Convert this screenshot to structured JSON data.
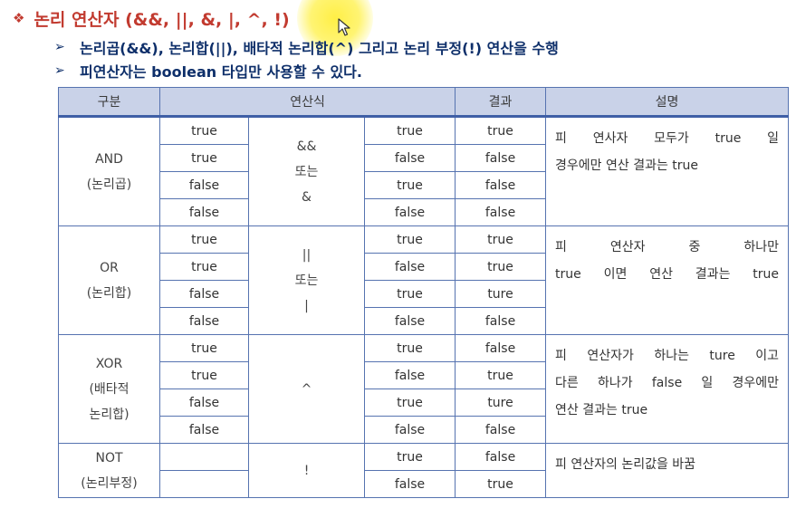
{
  "title": {
    "marker": "❖",
    "text": "논리 연산자 (&&, ||, &, |, ^, !)"
  },
  "bullets": [
    {
      "marker": "➢",
      "text": "논리곱(&&), 논리합(||), 배타적 논리합(^) 그리고 논리 부정(!) 연산을 수행"
    },
    {
      "marker": "➢",
      "text": "피연산자는 boolean 타입만 사용할 수 있다."
    }
  ],
  "table": {
    "headers": {
      "category": "구분",
      "expression": "연산식",
      "result": "결과",
      "description": "설명"
    },
    "groups": [
      {
        "category": [
          "AND",
          "(논리곱)"
        ],
        "operator": [
          "&&",
          "또는",
          "&"
        ],
        "description": [
          "피 연사자 모두가 true 일",
          "경우에만 연산 결과는 true"
        ],
        "rows": [
          {
            "left": "true",
            "right": "true",
            "result": "true"
          },
          {
            "left": "true",
            "right": "false",
            "result": "false"
          },
          {
            "left": "false",
            "right": "true",
            "result": "false"
          },
          {
            "left": "false",
            "right": "false",
            "result": "false"
          }
        ]
      },
      {
        "category": [
          "OR",
          "(논리합)"
        ],
        "operator": [
          "||",
          "또는",
          "|"
        ],
        "description": [
          "피 연산자 중 하나만",
          "true 이면 연산 결과는 true"
        ],
        "rows": [
          {
            "left": "true",
            "right": "true",
            "result": "true"
          },
          {
            "left": "true",
            "right": "false",
            "result": "true"
          },
          {
            "left": "false",
            "right": "true",
            "result": "ture"
          },
          {
            "left": "false",
            "right": "false",
            "result": "false"
          }
        ]
      },
      {
        "category": [
          "XOR",
          "(배타적",
          "논리합)"
        ],
        "operator": [
          "^"
        ],
        "description": [
          "피 연산자가 하나는 ture 이고",
          "다른 하나가 false 일 경우에만",
          "연산 결과는 true"
        ],
        "rows": [
          {
            "left": "true",
            "right": "true",
            "result": "false"
          },
          {
            "left": "true",
            "right": "false",
            "result": "true"
          },
          {
            "left": "false",
            "right": "true",
            "result": "ture"
          },
          {
            "left": "false",
            "right": "false",
            "result": "false"
          }
        ]
      },
      {
        "category": [
          "NOT",
          "(논리부정)"
        ],
        "operator": [
          "!"
        ],
        "description": [
          "피 연산자의 논리값을 바꿈"
        ],
        "rows": [
          {
            "left": "",
            "right": "true",
            "result": "false"
          },
          {
            "left": "",
            "right": "false",
            "result": "true"
          }
        ]
      }
    ]
  },
  "colors": {
    "title": "#c23b30",
    "bullet": "#0e2f6a",
    "header_bg": "#c9d2e8",
    "border": "#5673b0",
    "highlight": "#ffee3c"
  }
}
